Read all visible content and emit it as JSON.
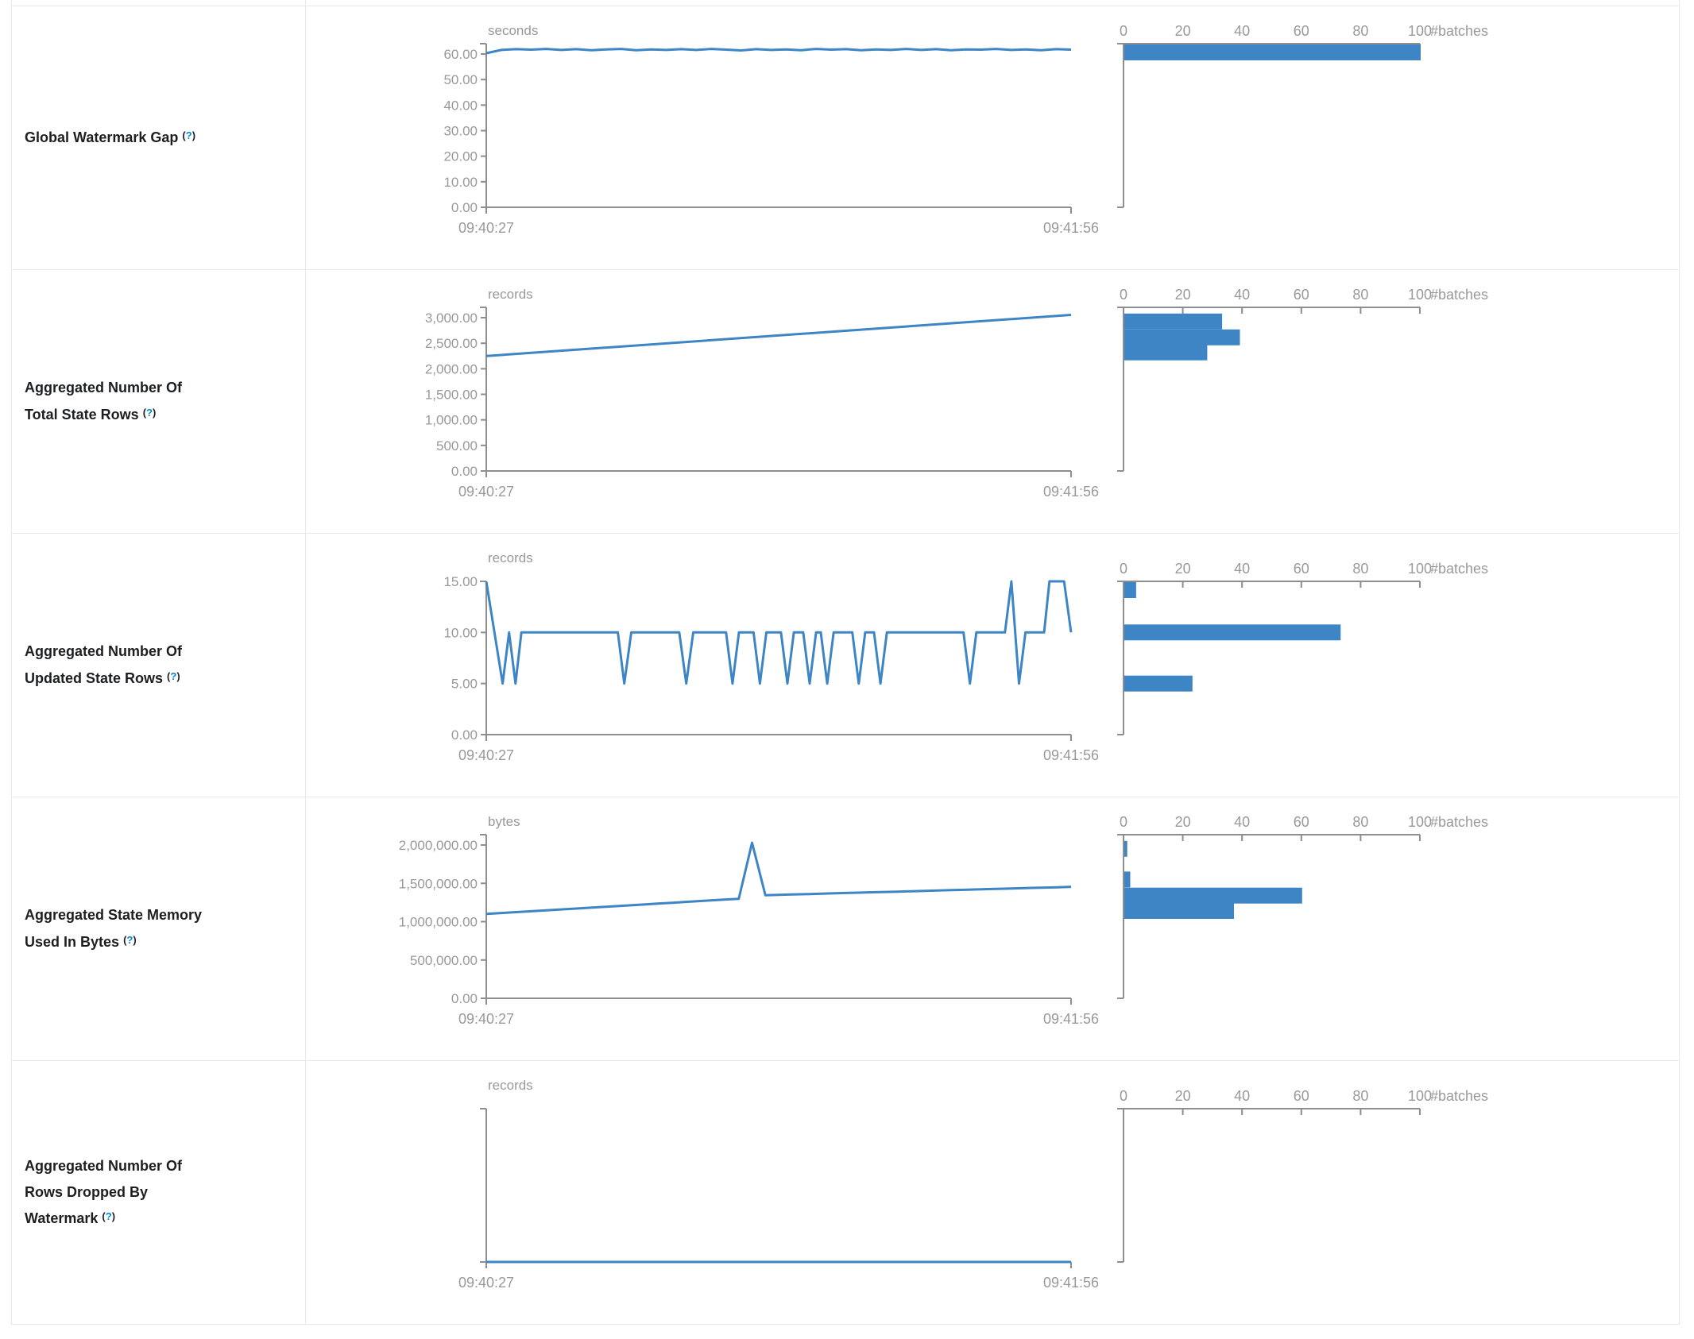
{
  "colors": {
    "accent": "#3e85c5",
    "axis": "#8e8e8e",
    "tick_label": "#999999",
    "label_text": "#1c1e21",
    "help_link": "#0088cc",
    "border": "#e8e8e8"
  },
  "time_axis": {
    "start": "09:40:27",
    "end": "09:41:56"
  },
  "histogram_axis": {
    "tick_labels": [
      "0",
      "20",
      "40",
      "60",
      "80",
      "100"
    ],
    "max": 100,
    "unit": "#batches"
  },
  "rows": [
    {
      "id": "global-watermark-gap",
      "label": "Global Watermark Gap",
      "help": "(?)",
      "timeline": {
        "unit": "seconds",
        "ymax": 60,
        "over_top": true,
        "ytick_labels": [
          "60.00",
          "50.00",
          "40.00",
          "30.00",
          "20.00",
          "10.00",
          "0.00"
        ],
        "points": [
          60.3,
          61.6,
          61.9,
          61.7,
          62.0,
          61.6,
          61.9,
          61.5,
          61.8,
          62.0,
          61.5,
          61.8,
          61.6,
          61.9,
          61.6,
          62.0,
          61.7,
          61.4,
          61.9,
          61.6,
          61.8,
          61.5,
          62.0,
          61.7,
          61.9,
          61.5,
          61.8,
          61.6,
          62.0,
          61.6,
          61.9,
          61.5,
          61.8,
          61.7,
          62.0,
          61.6,
          61.8,
          61.5,
          61.9,
          61.7
        ]
      },
      "histogram": {
        "bars": [
          {
            "value": 61,
            "count": 100
          }
        ]
      }
    },
    {
      "id": "aggregated-total-state-rows",
      "label": "Aggregated Number Of Total State Rows",
      "help": "(?)",
      "timeline": {
        "unit": "records",
        "ymax": 3000,
        "over_top": true,
        "ytick_labels": [
          "3,000.00",
          "2,500.00",
          "2,000.00",
          "1,500.00",
          "1,000.00",
          "500.00",
          "0.00"
        ],
        "points": [
          [
            0,
            2250
          ],
          [
            1,
            3055
          ]
        ]
      },
      "histogram": {
        "bars": [
          {
            "value": 2925,
            "count": 33
          },
          {
            "value": 2615,
            "count": 39
          },
          {
            "value": 2320,
            "count": 28
          }
        ]
      }
    },
    {
      "id": "aggregated-updated-state-rows",
      "label": "Aggregated Number Of Updated State Rows",
      "help": "(?)",
      "timeline": {
        "unit": "records",
        "ymax": 15,
        "over_top": false,
        "ytick_labels": [
          "15.00",
          "10.00",
          "5.00",
          "0.00"
        ],
        "points": [
          [
            0,
            15
          ],
          [
            0.028,
            5
          ],
          [
            0.039,
            10
          ],
          [
            0.05,
            5
          ],
          [
            0.06,
            10
          ],
          [
            0.225,
            10
          ],
          [
            0.236,
            5
          ],
          [
            0.248,
            10
          ],
          [
            0.33,
            10
          ],
          [
            0.342,
            5
          ],
          [
            0.354,
            10
          ],
          [
            0.41,
            10
          ],
          [
            0.421,
            5
          ],
          [
            0.432,
            10
          ],
          [
            0.457,
            10
          ],
          [
            0.468,
            5
          ],
          [
            0.479,
            10
          ],
          [
            0.504,
            10
          ],
          [
            0.515,
            5
          ],
          [
            0.526,
            10
          ],
          [
            0.542,
            10
          ],
          [
            0.553,
            5
          ],
          [
            0.564,
            10
          ],
          [
            0.572,
            10
          ],
          [
            0.583,
            5
          ],
          [
            0.594,
            10
          ],
          [
            0.626,
            10
          ],
          [
            0.637,
            5
          ],
          [
            0.648,
            10
          ],
          [
            0.663,
            10
          ],
          [
            0.674,
            5
          ],
          [
            0.685,
            10
          ],
          [
            0.816,
            10
          ],
          [
            0.827,
            5
          ],
          [
            0.838,
            10
          ],
          [
            0.887,
            10
          ],
          [
            0.898,
            15
          ],
          [
            0.911,
            5
          ],
          [
            0.922,
            10
          ],
          [
            0.954,
            10
          ],
          [
            0.963,
            15
          ],
          [
            0.988,
            15
          ],
          [
            1,
            10
          ]
        ]
      },
      "histogram": {
        "bars": [
          {
            "value": 15,
            "count": 4
          },
          {
            "value": 10,
            "count": 73
          },
          {
            "value": 5,
            "count": 23
          }
        ]
      }
    },
    {
      "id": "aggregated-state-memory",
      "label": "Aggregated State Memory Used In Bytes",
      "help": "(?)",
      "timeline": {
        "unit": "bytes",
        "ymax": 2000000,
        "over_top": true,
        "ytick_labels": [
          "2,000,000.00",
          "1,500,000.00",
          "1,000,000.00",
          "500,000.00",
          "0.00"
        ],
        "points": [
          1100000,
          1111000,
          1121000,
          1132000,
          1142000,
          1153000,
          1163000,
          1174000,
          1184000,
          1195000,
          1205000,
          1216000,
          1226000,
          1237000,
          1247000,
          1258000,
          1268000,
          1279000,
          1289000,
          1298000,
          2030000,
          1345000,
          1350000,
          1355000,
          1359000,
          1364000,
          1369000,
          1374000,
          1378000,
          1383000,
          1388000,
          1392000,
          1397000,
          1402000,
          1407000,
          1411000,
          1416000,
          1421000,
          1426000,
          1430000,
          1435000,
          1440000,
          1445000,
          1449000,
          1455000
        ]
      },
      "histogram": {
        "bars": [
          {
            "value": 1950000,
            "count": 1
          },
          {
            "value": 1550000,
            "count": 2
          },
          {
            "value": 1340000,
            "count": 60
          },
          {
            "value": 1140000,
            "count": 37
          }
        ]
      }
    },
    {
      "id": "aggregated-rows-dropped-by-watermark",
      "label": "Aggregated Number Of Rows Dropped By Watermark",
      "help": "(?)",
      "timeline": {
        "unit": "records",
        "ymax": 1,
        "over_top": false,
        "ytick_labels": [],
        "points": [
          [
            0,
            0
          ],
          [
            1,
            0
          ]
        ]
      },
      "histogram": {
        "bars": []
      }
    }
  ],
  "chart_data": [
    {
      "type": "line",
      "title": "Global Watermark Gap",
      "ylabel": "seconds",
      "x": [
        "09:40:27",
        "09:41:56"
      ],
      "series": [
        {
          "name": "watermark gap",
          "approx_constant": 61.5
        }
      ],
      "ylim": [
        0,
        60
      ]
    },
    {
      "type": "bar",
      "title": "Global Watermark Gap histogram",
      "xlabel": "#batches",
      "categories": [
        "~61s"
      ],
      "values": [
        100
      ],
      "xlim": [
        0,
        100
      ]
    },
    {
      "type": "line",
      "title": "Aggregated Number Of Total State Rows",
      "ylabel": "records",
      "x": [
        "09:40:27",
        "09:41:56"
      ],
      "series": [
        {
          "name": "total state rows",
          "start": 2250,
          "end": 3055
        }
      ],
      "ylim": [
        0,
        3000
      ]
    },
    {
      "type": "bar",
      "title": "Aggregated Number Of Total State Rows histogram",
      "xlabel": "#batches",
      "categories": [
        "~2925",
        "~2615",
        "~2320"
      ],
      "values": [
        33,
        39,
        28
      ],
      "xlim": [
        0,
        100
      ]
    },
    {
      "type": "line",
      "title": "Aggregated Number Of Updated State Rows",
      "ylabel": "records",
      "x": [
        "09:40:27",
        "09:41:56"
      ],
      "series": [
        {
          "name": "updated state rows",
          "values_taken": [
            15,
            10,
            5
          ]
        }
      ],
      "ylim": [
        0,
        15
      ]
    },
    {
      "type": "bar",
      "title": "Aggregated Number Of Updated State Rows histogram",
      "xlabel": "#batches",
      "categories": [
        "15",
        "10",
        "5"
      ],
      "values": [
        4,
        73,
        23
      ],
      "xlim": [
        0,
        100
      ]
    },
    {
      "type": "line",
      "title": "Aggregated State Memory Used In Bytes",
      "ylabel": "bytes",
      "x": [
        "09:40:27",
        "09:41:56"
      ],
      "series": [
        {
          "name": "state memory",
          "start": 1100000,
          "end": 1455000,
          "spike": 2030000,
          "spike_position": 0.45
        }
      ],
      "ylim": [
        0,
        2000000
      ]
    },
    {
      "type": "bar",
      "title": "Aggregated State Memory Used In Bytes histogram",
      "xlabel": "#batches",
      "categories": [
        "~1.95M",
        "~1.55M",
        "~1.34M",
        "~1.14M"
      ],
      "values": [
        1,
        2,
        60,
        37
      ],
      "xlim": [
        0,
        100
      ]
    },
    {
      "type": "line",
      "title": "Aggregated Number Of Rows Dropped By Watermark",
      "ylabel": "records",
      "x": [
        "09:40:27",
        "09:41:56"
      ],
      "series": [
        {
          "name": "rows dropped",
          "approx_constant": 0
        }
      ]
    },
    {
      "type": "bar",
      "title": "Aggregated Number Of Rows Dropped By Watermark histogram",
      "xlabel": "#batches",
      "categories": [],
      "values": [],
      "xlim": [
        0,
        100
      ]
    }
  ]
}
